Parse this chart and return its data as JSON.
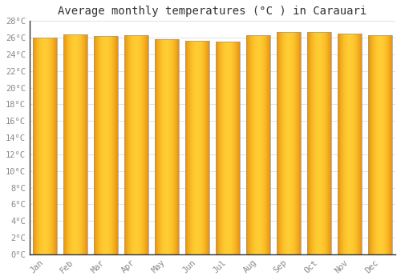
{
  "title": "Average monthly temperatures (°C ) in Carauari",
  "months": [
    "Jan",
    "Feb",
    "Mar",
    "Apr",
    "May",
    "Jun",
    "Jul",
    "Aug",
    "Sep",
    "Oct",
    "Nov",
    "Dec"
  ],
  "temperatures": [
    26.0,
    26.4,
    26.2,
    26.3,
    25.8,
    25.6,
    25.5,
    26.3,
    26.7,
    26.7,
    26.5,
    26.3
  ],
  "ylim": [
    0,
    28
  ],
  "yticks": [
    0,
    2,
    4,
    6,
    8,
    10,
    12,
    14,
    16,
    18,
    20,
    22,
    24,
    26,
    28
  ],
  "bar_color_left": "#E8900A",
  "bar_color_center": "#FFCC33",
  "bar_color_right": "#E8900A",
  "background_color": "#FFFFFF",
  "grid_color": "#DDDDDD",
  "title_fontsize": 10,
  "tick_fontsize": 7.5,
  "font_family": "monospace"
}
